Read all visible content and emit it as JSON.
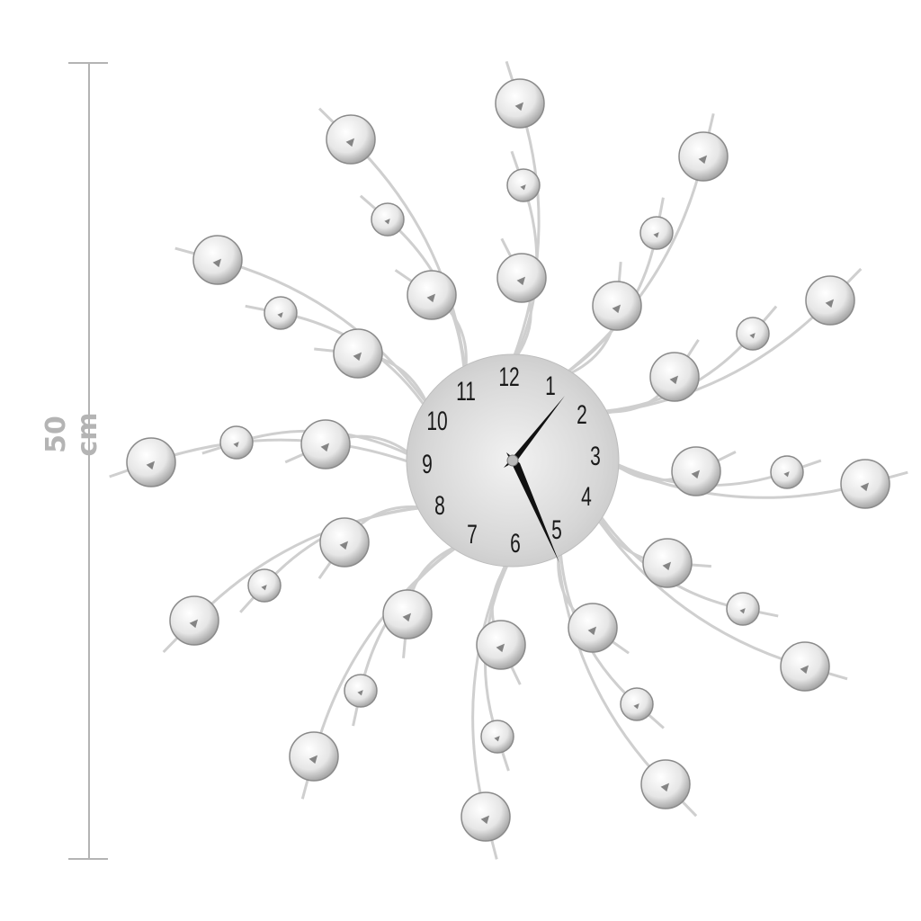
{
  "dimension": {
    "label": "50 cm",
    "line_color": "#b4b4b4"
  },
  "clock": {
    "numerals": [
      "12",
      "1",
      "2",
      "3",
      "4",
      "5",
      "6",
      "7",
      "8",
      "9",
      "10",
      "11"
    ],
    "face_color": "#d9d9d9",
    "hand_color": "#111111",
    "wire_color": "#cfcfcf"
  }
}
